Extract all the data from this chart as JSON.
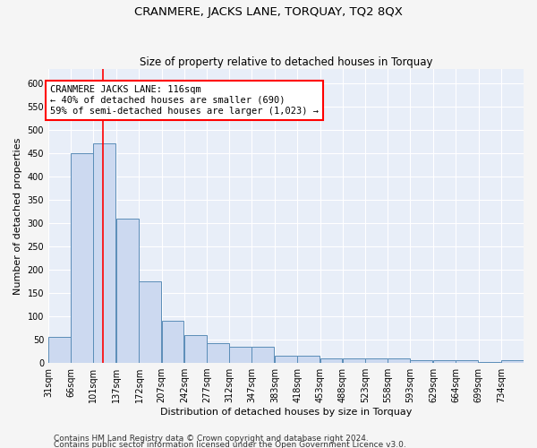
{
  "title": "CRANMERE, JACKS LANE, TORQUAY, TQ2 8QX",
  "subtitle": "Size of property relative to detached houses in Torquay",
  "xlabel": "Distribution of detached houses by size in Torquay",
  "ylabel": "Number of detached properties",
  "footer1": "Contains HM Land Registry data © Crown copyright and database right 2024.",
  "footer2": "Contains public sector information licensed under the Open Government Licence v3.0.",
  "bins": [
    31,
    66,
    101,
    137,
    172,
    207,
    242,
    277,
    312,
    347,
    383,
    418,
    453,
    488,
    523,
    558,
    593,
    629,
    664,
    699,
    734
  ],
  "bin_labels": [
    "31sqm",
    "66sqm",
    "101sqm",
    "137sqm",
    "172sqm",
    "207sqm",
    "242sqm",
    "277sqm",
    "312sqm",
    "347sqm",
    "383sqm",
    "418sqm",
    "453sqm",
    "488sqm",
    "523sqm",
    "558sqm",
    "593sqm",
    "629sqm",
    "664sqm",
    "699sqm",
    "734sqm"
  ],
  "values": [
    55,
    450,
    470,
    310,
    175,
    90,
    60,
    43,
    35,
    35,
    15,
    15,
    10,
    10,
    10,
    10,
    5,
    5,
    5,
    2,
    5
  ],
  "bar_color": "#ccd9f0",
  "bar_edge_color": "#5b8db8",
  "red_line_x": 116,
  "annotation_line1": "CRANMERE JACKS LANE: 116sqm",
  "annotation_line2": "← 40% of detached houses are smaller (690)",
  "annotation_line3": "59% of semi-detached houses are larger (1,023) →",
  "ylim": [
    0,
    630
  ],
  "yticks": [
    0,
    50,
    100,
    150,
    200,
    250,
    300,
    350,
    400,
    450,
    500,
    550,
    600
  ],
  "background_color": "#e8eef8",
  "grid_color": "#ffffff",
  "fig_bg_color": "#f5f5f5",
  "title_fontsize": 9.5,
  "subtitle_fontsize": 8.5,
  "axis_label_fontsize": 8,
  "tick_fontsize": 7,
  "annotation_fontsize": 7.5,
  "footer_fontsize": 6.5
}
